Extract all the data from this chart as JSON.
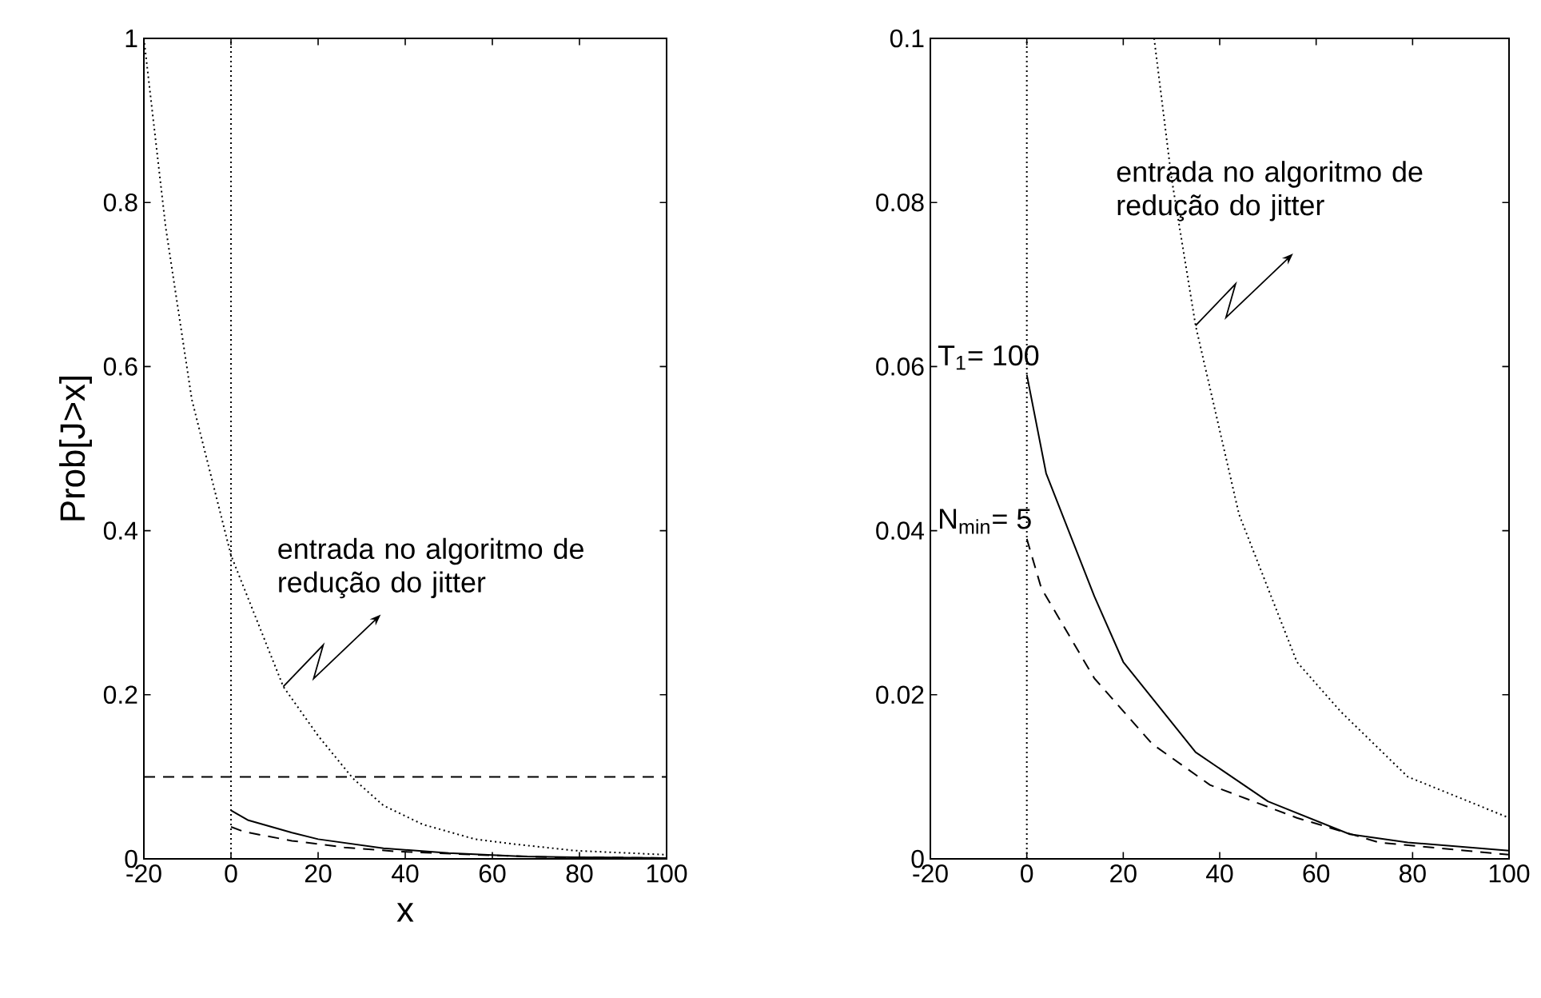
{
  "chart_data": [
    {
      "type": "line",
      "xlabel": "x",
      "ylabel": "Prob[J>x]",
      "xlim": [
        -20,
        100
      ],
      "ylim": [
        0,
        1
      ],
      "xticks": [
        -20,
        0,
        20,
        40,
        60,
        80,
        100
      ],
      "yticks": [
        0,
        0.2,
        0.4,
        0.6,
        0.8,
        1
      ],
      "series": [
        {
          "color": "#000000",
          "line_style": "dotted",
          "x": [
            -20,
            -15,
            -9,
            0,
            12,
            20,
            28,
            35,
            44,
            56,
            65,
            79,
            100
          ],
          "values": [
            1,
            0.77,
            0.56,
            0.37,
            0.21,
            0.15,
            0.098,
            0.065,
            0.042,
            0.024,
            0.018,
            0.01,
            0.005
          ]
        },
        {
          "color": "#000000",
          "line_style": "solid",
          "x": [
            0,
            4,
            14,
            20,
            35,
            50,
            67,
            79,
            100
          ],
          "values": [
            0.059,
            0.047,
            0.032,
            0.024,
            0.013,
            0.007,
            0.003,
            0.002,
            0.001
          ]
        },
        {
          "color": "#000000",
          "line_style": "dashed",
          "x": [
            0,
            3,
            14,
            26,
            38,
            56,
            73,
            100
          ],
          "values": [
            0.039,
            0.033,
            0.022,
            0.014,
            0.009,
            0.005,
            0.002,
            0.001
          ]
        }
      ],
      "ref_lines": [
        {
          "axis": "x",
          "value": 0,
          "line_style": "dotted"
        },
        {
          "axis": "y",
          "value": 0.1,
          "line_style": "dashed"
        }
      ],
      "annotations": [
        {
          "text": "entrada no algoritmo de redução do jitter",
          "x": 12,
          "y": 0.21
        }
      ]
    },
    {
      "type": "line",
      "xlim": [
        -20,
        100
      ],
      "ylim": [
        0,
        0.1
      ],
      "xticks": [
        -20,
        0,
        20,
        40,
        60,
        80,
        100
      ],
      "yticks": [
        0,
        0.02,
        0.04,
        0.06,
        0.08,
        0.1
      ],
      "series": [
        {
          "color": "#000000",
          "line_style": "dotted",
          "x": [
            26.4,
            30,
            35,
            44,
            56,
            65,
            79,
            100
          ],
          "values": [
            0.1,
            0.083,
            0.065,
            0.042,
            0.024,
            0.018,
            0.01,
            0.005
          ]
        },
        {
          "color": "#000000",
          "line_style": "solid",
          "x": [
            0,
            4,
            14,
            20,
            35,
            50,
            67,
            79,
            100
          ],
          "values": [
            0.059,
            0.047,
            0.032,
            0.024,
            0.013,
            0.007,
            0.003,
            0.002,
            0.001
          ]
        },
        {
          "color": "#000000",
          "line_style": "dashed",
          "x": [
            0,
            3,
            14,
            26,
            38,
            56,
            73,
            100
          ],
          "values": [
            0.039,
            0.033,
            0.022,
            0.014,
            0.009,
            0.005,
            0.002,
            0.0005
          ]
        }
      ],
      "ref_lines": [
        {
          "axis": "x",
          "value": 0,
          "line_style": "dotted"
        }
      ],
      "annotations": [
        {
          "text": "entrada no algoritmo de redução do jitter",
          "x": 35,
          "y": 0.065
        },
        {
          "text": "T$_{1}$= 100",
          "x": 0,
          "y": 0.059
        },
        {
          "text": "N$_{min}$= 5",
          "x": 0,
          "y": 0.039
        }
      ]
    }
  ]
}
